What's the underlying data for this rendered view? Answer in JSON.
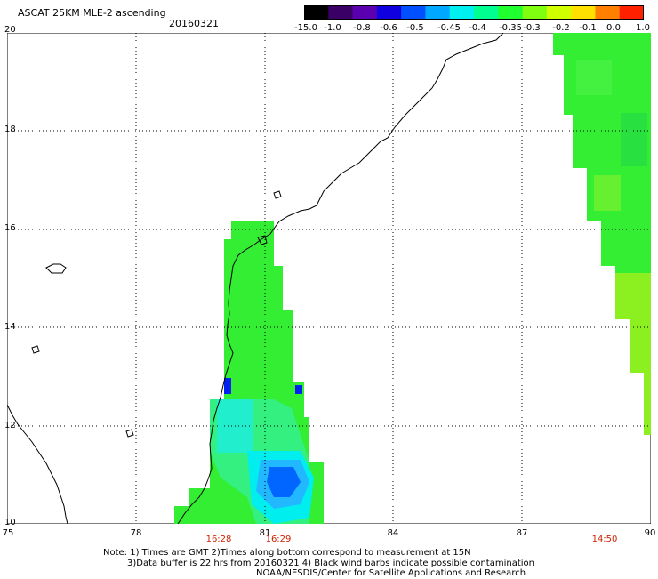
{
  "header": {
    "title": "ASCAT 25KM MLE-2 ascending",
    "date": "20160321"
  },
  "colorbar": {
    "labels": [
      "-15.0",
      "-1.0",
      "-0.8",
      "-0.6",
      "-0.5",
      "-0.45",
      "-0.4",
      "-0.35",
      "-0.3",
      "-0.2",
      "-0.1",
      "0.0",
      "1.0"
    ],
    "colors": [
      "#000000",
      "#3a0066",
      "#5a00b0",
      "#1000e0",
      "#0050ff",
      "#00a8ff",
      "#00f0f0",
      "#00ff90",
      "#20ff30",
      "#80ff10",
      "#d0ff00",
      "#ffe000",
      "#ff8000",
      "#ff2000"
    ]
  },
  "map": {
    "lon_range": [
      75,
      90
    ],
    "lat_range": [
      10,
      20
    ],
    "lon_ticks": [
      "75",
      "78",
      "81",
      "84",
      "87",
      "90"
    ],
    "lat_ticks": [
      "20",
      "18",
      "16",
      "14",
      "12",
      "10"
    ],
    "grid": true
  },
  "times": [
    "16:28",
    "16:29",
    "14:50"
  ],
  "footer": {
    "line1": "Note: 1) Times are GMT 2)Times along bottom correspond to measurement at 15N",
    "line2": "3)Data buffer is 22 hrs from 20160321 4) Black wind barbs indicate possible contamination",
    "line3": "NOAA/NESDIS/Center for Satellite Applications and Research"
  },
  "colors": {
    "swath_green": "#22ee22",
    "swath_cyan": "#00eeee",
    "swath_blue": "#0066ff",
    "coast": "#000000",
    "time_label": "#cc2200"
  }
}
